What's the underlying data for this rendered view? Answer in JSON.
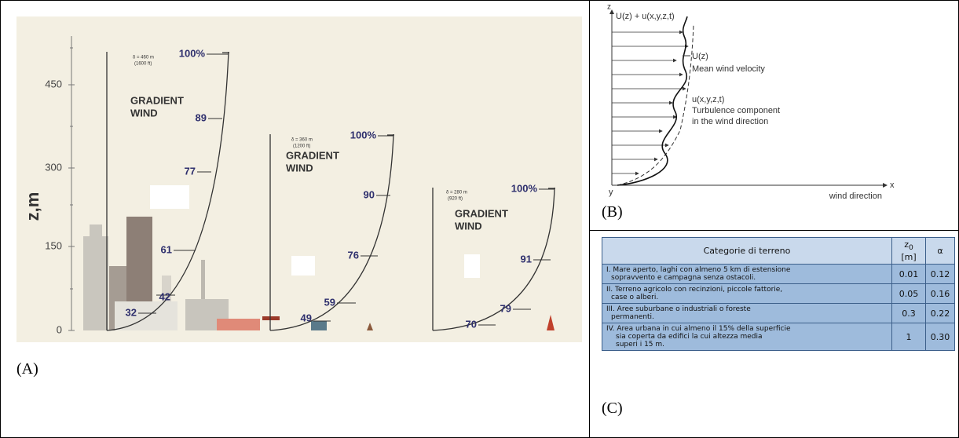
{
  "panel_a": {
    "label": "(A)",
    "axis": {
      "title": "z,m",
      "ticks": [
        "450",
        "300",
        "150",
        "0"
      ]
    },
    "profiles": [
      {
        "delta": "δ = 460 m",
        "delta_ft": "(1600 ft)",
        "top_percent": "100%",
        "gradient": [
          "GRADIENT",
          "WIND"
        ],
        "percents": [
          "89",
          "77",
          "61",
          "42",
          "32"
        ]
      },
      {
        "delta": "δ = 360 m",
        "delta_ft": "(1200 ft)",
        "top_percent": "100%",
        "gradient": [
          "GRADIENT",
          "WIND"
        ],
        "percents": [
          "90",
          "76",
          "59",
          "49"
        ]
      },
      {
        "delta": "δ = 280 m",
        "delta_ft": "(920 ft)",
        "top_percent": "100%",
        "gradient": [
          "GRADIENT",
          "WIND"
        ],
        "percents": [
          "91",
          "79",
          "70"
        ]
      }
    ]
  },
  "panel_b": {
    "label": "(B)",
    "z_label": "z",
    "total_label": "U(z) + u(x,y,z,t)",
    "mean_label": "U(z)",
    "mean_desc": "Mean wind velocity",
    "turb_label": "u(x,y,z,t)",
    "turb_desc": [
      "Turbulence component",
      "in the wind direction"
    ],
    "y_label": "y",
    "x_label": "x",
    "direction": "wind direction"
  },
  "panel_c": {
    "label": "(C)",
    "header": [
      "Categorie di terreno",
      {
        "symbol": "z",
        "subscript": "0",
        "unit": "[m]"
      },
      "α"
    ],
    "rows": [
      [
        [
          "I. Mare aperto, laghi con almeno 5 km di estensione",
          "sopravvento e campagna senza ostacoli."
        ],
        "0.01",
        "0.12"
      ],
      [
        [
          "II. Terreno agricolo con recinzioni, piccole fattorie,",
          "case o alberi."
        ],
        "0.05",
        "0.16"
      ],
      [
        [
          "III. Aree suburbane o industriali o foreste",
          "permanenti."
        ],
        "0.3",
        "0.22"
      ],
      [
        [
          "IV. Area urbana in cui almeno il 15% della superficie",
          "sia coperta da edifici la cui altezza media",
          "superi i 15 m."
        ],
        "1",
        "0.30"
      ]
    ]
  }
}
